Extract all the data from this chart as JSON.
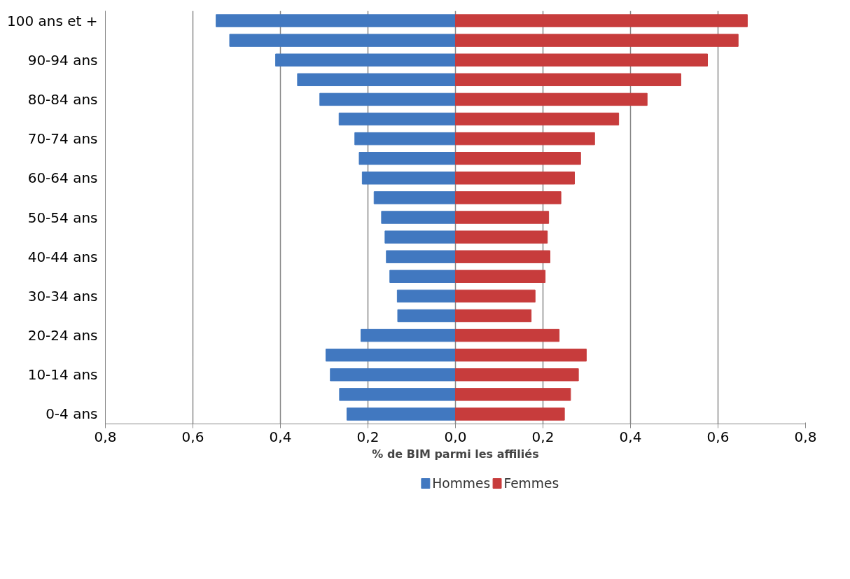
{
  "chart_data": {
    "type": "bar",
    "orientation": "horizontal",
    "xlabel": "% de BIM parmi les affiliés",
    "categories": [
      "100 ans et +",
      null,
      "90-94 ans",
      null,
      "80-84 ans",
      null,
      "70-74 ans",
      null,
      "60-64 ans",
      null,
      "50-54 ans",
      null,
      "40-44 ans",
      null,
      "30-34 ans",
      null,
      "20-24 ans",
      null,
      "10-14 ans",
      null,
      "0-4 ans"
    ],
    "series": [
      {
        "name": "Hommes",
        "color": "#4178c0",
        "values": [
          -0.547,
          -0.516,
          -0.411,
          -0.361,
          -0.31,
          -0.266,
          -0.23,
          -0.22,
          -0.213,
          -0.186,
          -0.169,
          -0.161,
          -0.158,
          -0.15,
          -0.133,
          -0.132,
          -0.216,
          -0.296,
          -0.286,
          -0.265,
          -0.248
        ]
      },
      {
        "name": "Femmes",
        "color": "#c73c3c",
        "values": [
          0.667,
          0.646,
          0.576,
          0.515,
          0.438,
          0.373,
          0.318,
          0.286,
          0.272,
          0.241,
          0.213,
          0.21,
          0.216,
          0.205,
          0.182,
          0.173,
          0.237,
          0.299,
          0.281,
          0.263,
          0.249
        ]
      }
    ],
    "xlim": [
      -0.8,
      0.8
    ],
    "xticks": [
      {
        "value": -0.8,
        "label": "0,8"
      },
      {
        "value": -0.6,
        "label": "0,6"
      },
      {
        "value": -0.4,
        "label": "0,4"
      },
      {
        "value": -0.2,
        "label": "0,2"
      },
      {
        "value": 0,
        "label": "0,0"
      },
      {
        "value": 0.2,
        "label": "0,2"
      },
      {
        "value": 0.4,
        "label": "0,4"
      },
      {
        "value": 0.6,
        "label": "0,6"
      },
      {
        "value": 0.8,
        "label": "0,8"
      }
    ],
    "grid": "x",
    "legend": "bottom",
    "stacked": true
  }
}
